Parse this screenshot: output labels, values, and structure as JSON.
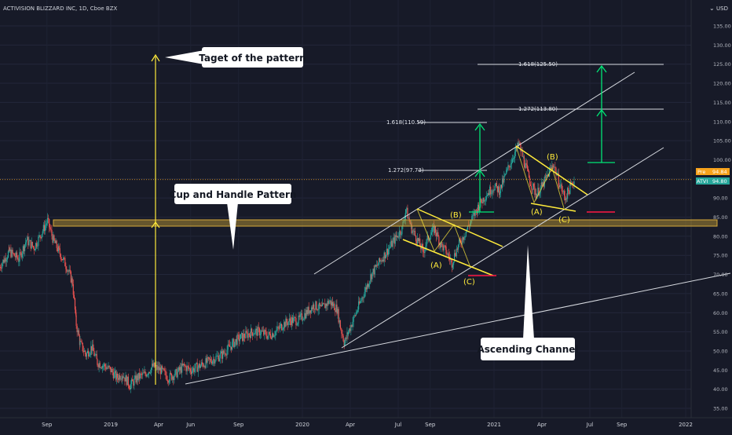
{
  "header": {
    "title": "ACTIVISION BLIZZARD INC, 1D, Cboe BZX",
    "currency": "USD"
  },
  "chart_data": {
    "type": "line",
    "title": "ACTIVISION BLIZZARD INC, 1D, Cboe BZX",
    "ylabel": "USD",
    "ylim": [
      32.5,
      140
    ],
    "yticks": [
      35,
      40,
      45,
      50,
      55,
      60,
      65,
      70,
      75,
      80,
      85,
      90,
      95,
      100,
      105,
      110,
      115,
      120,
      125,
      130,
      135
    ],
    "xticks": [
      {
        "label": "Sep",
        "x": 2018.667
      },
      {
        "label": "2019",
        "x": 2019.0
      },
      {
        "label": "Apr",
        "x": 2019.25
      },
      {
        "label": "Jun",
        "x": 2019.417
      },
      {
        "label": "Sep",
        "x": 2019.667
      },
      {
        "label": "2020",
        "x": 2020.0
      },
      {
        "label": "Apr",
        "x": 2020.25
      },
      {
        "label": "Jul",
        "x": 2020.5
      },
      {
        "label": "Sep",
        "x": 2020.667
      },
      {
        "label": "2021",
        "x": 2021.0
      },
      {
        "label": "Apr",
        "x": 2021.25
      },
      {
        "label": "Jul",
        "x": 2021.5
      },
      {
        "label": "Sep",
        "x": 2021.667
      },
      {
        "label": "2022",
        "x": 2022.0
      }
    ],
    "series": [
      {
        "values": [
          [
            2018.42,
            72
          ],
          [
            2018.47,
            76
          ],
          [
            2018.52,
            74
          ],
          [
            2018.56,
            79
          ],
          [
            2018.6,
            77
          ],
          [
            2018.64,
            81
          ],
          [
            2018.67,
            84
          ],
          [
            2018.7,
            79
          ],
          [
            2018.73,
            76
          ],
          [
            2018.77,
            72
          ],
          [
            2018.8,
            68
          ],
          [
            2018.82,
            57
          ],
          [
            2018.84,
            52
          ],
          [
            2018.87,
            49
          ],
          [
            2018.9,
            51
          ],
          [
            2018.93,
            47
          ],
          [
            2018.97,
            46
          ],
          [
            2019.0,
            45
          ],
          [
            2019.03,
            43
          ],
          [
            2019.06,
            44
          ],
          [
            2019.1,
            41
          ],
          [
            2019.14,
            43
          ],
          [
            2019.18,
            44
          ],
          [
            2019.22,
            46
          ],
          [
            2019.26,
            45
          ],
          [
            2019.3,
            43
          ],
          [
            2019.34,
            44
          ],
          [
            2019.38,
            46
          ],
          [
            2019.42,
            45
          ],
          [
            2019.46,
            46
          ],
          [
            2019.5,
            47
          ],
          [
            2019.54,
            48
          ],
          [
            2019.58,
            49
          ],
          [
            2019.62,
            51
          ],
          [
            2019.66,
            53
          ],
          [
            2019.7,
            54
          ],
          [
            2019.74,
            55
          ],
          [
            2019.78,
            55
          ],
          [
            2019.82,
            54
          ],
          [
            2019.86,
            55
          ],
          [
            2019.9,
            57
          ],
          [
            2019.94,
            58
          ],
          [
            2019.98,
            58
          ],
          [
            2020.02,
            60
          ],
          [
            2020.06,
            62
          ],
          [
            2020.1,
            61
          ],
          [
            2020.14,
            63
          ],
          [
            2020.18,
            61
          ],
          [
            2020.2,
            56
          ],
          [
            2020.22,
            52
          ],
          [
            2020.24,
            55
          ],
          [
            2020.28,
            60
          ],
          [
            2020.32,
            65
          ],
          [
            2020.36,
            70
          ],
          [
            2020.4,
            73
          ],
          [
            2020.44,
            76
          ],
          [
            2020.48,
            79
          ],
          [
            2020.52,
            82
          ],
          [
            2020.54,
            87
          ],
          [
            2020.57,
            82
          ],
          [
            2020.6,
            79
          ],
          [
            2020.63,
            76
          ],
          [
            2020.66,
            80
          ],
          [
            2020.69,
            82
          ],
          [
            2020.72,
            78
          ],
          [
            2020.75,
            76
          ],
          [
            2020.78,
            73
          ],
          [
            2020.8,
            76
          ],
          [
            2020.84,
            80
          ],
          [
            2020.88,
            84
          ],
          [
            2020.92,
            88
          ],
          [
            2020.96,
            91
          ],
          [
            2021.0,
            93
          ],
          [
            2021.03,
            92
          ],
          [
            2021.06,
            96
          ],
          [
            2021.1,
            101
          ],
          [
            2021.13,
            104
          ],
          [
            2021.16,
            99
          ],
          [
            2021.19,
            94
          ],
          [
            2021.22,
            91
          ],
          [
            2021.25,
            93
          ],
          [
            2021.28,
            96
          ],
          [
            2021.31,
            99
          ],
          [
            2021.34,
            94
          ],
          [
            2021.37,
            90
          ],
          [
            2021.4,
            93
          ],
          [
            2021.42,
            94.8
          ]
        ]
      }
    ],
    "price_labels": [
      {
        "text": "Pre",
        "value": "94.84",
        "color": "#f7a21b"
      },
      {
        "text": "ATVI",
        "value": "94.80",
        "color": "#26a69a"
      }
    ],
    "annotations": [
      {
        "text": "Taget of the pattern"
      },
      {
        "text": "Cup and Handle Pattern"
      },
      {
        "text": "Ascending Channel"
      }
    ],
    "fib_levels": [
      {
        "text": "1.618(125.50)",
        "value": 125.5
      },
      {
        "text": "1.272(113.80)",
        "value": 113.8
      },
      {
        "text": "1.618(110.59)",
        "value": 110.59
      },
      {
        "text": "1.272(97.73)",
        "value": 97.73
      }
    ],
    "wave_labels": [
      "(A)",
      "(B)",
      "(C)",
      "(A)",
      "(B)",
      "(C)"
    ],
    "colors": {
      "background": "#171a28",
      "up": "#26a69a",
      "down": "#ef5350",
      "pattern": "#ffeb3b",
      "target": "#00e676",
      "stop": "#ff1744",
      "zone": "#c8a034"
    }
  }
}
